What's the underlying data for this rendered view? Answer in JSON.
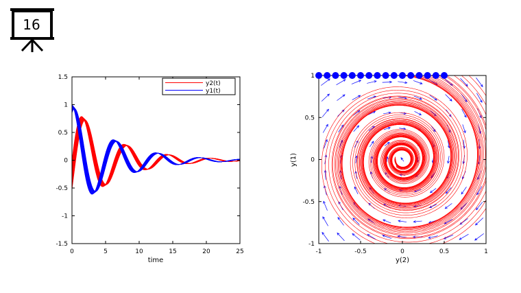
{
  "slide": {
    "number": "16"
  },
  "chart_data": [
    {
      "type": "line",
      "title": "",
      "xlabel": "time",
      "ylabel": "",
      "xlim": [
        0,
        25
      ],
      "ylim": [
        -1.5,
        1.5
      ],
      "xticks": [
        "0",
        "5",
        "10",
        "15",
        "20",
        "25"
      ],
      "yticks": [
        "1.5",
        "1",
        "0.5",
        "0",
        "-0.5",
        "-1",
        "-1.5"
      ],
      "legend_position": "top-right",
      "series": [
        {
          "name": "y2(t)",
          "color": "#ff0000",
          "amplitude": 1.0,
          "decay": 0.16,
          "omega": 1.0,
          "phase": -1.5708,
          "traces": 21,
          "trace_offset": 0.028
        },
        {
          "name": "y1(t)",
          "color": "#0000ff",
          "amplitude": 1.0,
          "decay": 0.16,
          "omega": 1.0,
          "phase": 0.0,
          "traces": 21,
          "trace_offset": 0.028
        }
      ]
    },
    {
      "type": "scatter",
      "title": "",
      "xlabel": "y(2)",
      "ylabel": "y(1)",
      "xlim": [
        -1,
        1
      ],
      "ylim": [
        -1,
        1
      ],
      "xticks": [
        "-1",
        "-0.5",
        "0",
        "0.5",
        "1"
      ],
      "yticks": [
        "1",
        "0.5",
        "0",
        "-0.5",
        "-1"
      ],
      "vector_field_color": "#0000ff",
      "trajectory_color": "#ff0000",
      "initial_points": {
        "color": "#0000ff",
        "y": 1,
        "x": [
          -1.0,
          -0.9,
          -0.8,
          -0.7,
          -0.6,
          -0.5,
          -0.4,
          -0.3,
          -0.2,
          -0.1,
          0.0,
          0.1,
          0.2,
          0.3,
          0.4,
          0.5
        ]
      }
    }
  ]
}
